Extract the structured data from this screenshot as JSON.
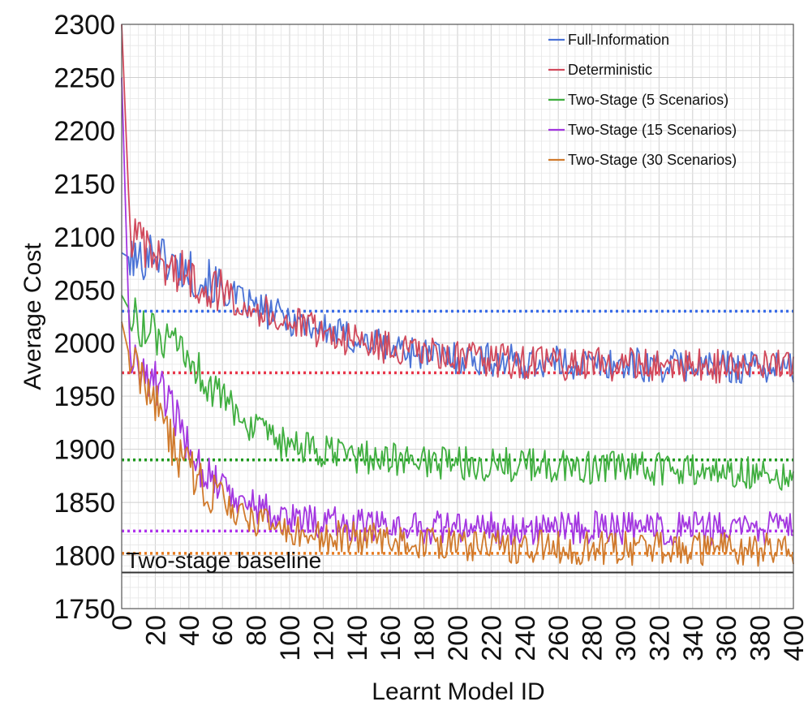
{
  "chart_data": {
    "type": "line",
    "title": "",
    "xlabel": "Learnt Model ID",
    "ylabel": "Average Cost",
    "xlim": [
      0,
      400
    ],
    "ylim": [
      1750,
      2300
    ],
    "x_ticks": [
      "0",
      "20",
      "40",
      "60",
      "80",
      "100",
      "120",
      "140",
      "160",
      "180",
      "200",
      "220",
      "240",
      "260",
      "280",
      "300",
      "320",
      "340",
      "360",
      "380",
      "400"
    ],
    "y_ticks": [
      "1750",
      "1800",
      "1850",
      "1900",
      "1950",
      "2000",
      "2050",
      "2100",
      "2150",
      "2200",
      "2250",
      "2300"
    ],
    "grid": true,
    "legend_position": "top-right",
    "x": [
      0,
      5,
      10,
      15,
      20,
      25,
      30,
      35,
      40,
      45,
      50,
      55,
      60,
      65,
      70,
      75,
      80,
      85,
      90,
      95,
      100,
      110,
      120,
      130,
      140,
      150,
      160,
      170,
      180,
      190,
      200,
      220,
      240,
      260,
      280,
      300,
      320,
      340,
      360,
      380,
      400
    ],
    "series": [
      {
        "name": "Full-Information",
        "color": "#4a72d6",
        "values": [
          2085,
          2080,
          2075,
          2085,
          2088,
          2080,
          2075,
          2070,
          2068,
          2062,
          2058,
          2055,
          2050,
          2045,
          2040,
          2037,
          2032,
          2030,
          2028,
          2025,
          2023,
          2018,
          2013,
          2008,
          2003,
          2000,
          1997,
          1993,
          1990,
          1988,
          1986,
          1984,
          1982,
          1981,
          1980,
          1980,
          1979,
          1979,
          1978,
          1978,
          1977
        ]
      },
      {
        "name": "Deterministic",
        "color": "#d14a5c",
        "values": [
          2300,
          2105,
          2095,
          2085,
          2080,
          2075,
          2070,
          2066,
          2062,
          2058,
          2055,
          2052,
          2048,
          2044,
          2040,
          2036,
          2032,
          2029,
          2026,
          2023,
          2020,
          2015,
          2010,
          2006,
          2002,
          1998,
          1995,
          1992,
          1990,
          1988,
          1986,
          1984,
          1982,
          1981,
          1980,
          1980,
          1979,
          1979,
          1978,
          1978,
          1977
        ]
      },
      {
        "name": "Two-Stage (5 Scenarios)",
        "color": "#3fae3f",
        "values": [
          2045,
          2030,
          2020,
          2010,
          2005,
          2000,
          1995,
          1990,
          1985,
          1975,
          1965,
          1955,
          1948,
          1940,
          1932,
          1925,
          1918,
          1912,
          1908,
          1905,
          1903,
          1900,
          1897,
          1895,
          1893,
          1892,
          1891,
          1890,
          1889,
          1888,
          1887,
          1886,
          1885,
          1884,
          1883,
          1882,
          1881,
          1880,
          1879,
          1878,
          1877
        ]
      },
      {
        "name": "Two-Stage (15 Scenarios)",
        "color": "#a336e0",
        "values": [
          2250,
          1985,
          1975,
          1970,
          1965,
          1950,
          1935,
          1920,
          1905,
          1890,
          1880,
          1872,
          1865,
          1860,
          1855,
          1850,
          1846,
          1843,
          1840,
          1838,
          1836,
          1834,
          1832,
          1830,
          1829,
          1828,
          1828,
          1827,
          1827,
          1827,
          1826,
          1826,
          1826,
          1826,
          1826,
          1825,
          1825,
          1825,
          1825,
          1825,
          1825
        ]
      },
      {
        "name": "Two-Stage (30 Scenarios)",
        "color": "#d07a2c",
        "values": [
          2020,
          1985,
          1970,
          1960,
          1945,
          1925,
          1905,
          1890,
          1880,
          1872,
          1865,
          1858,
          1850,
          1845,
          1840,
          1836,
          1832,
          1829,
          1826,
          1824,
          1822,
          1820,
          1818,
          1817,
          1816,
          1815,
          1814,
          1813,
          1812,
          1811,
          1810,
          1809,
          1808,
          1808,
          1807,
          1807,
          1806,
          1806,
          1806,
          1806,
          1806
        ]
      }
    ],
    "reference_lines": [
      {
        "series": "Full-Information",
        "y": 2030,
        "color": "#3b6de8",
        "style": "dotted"
      },
      {
        "series": "Deterministic",
        "y": 1972,
        "color": "#e8364a",
        "style": "dotted"
      },
      {
        "series": "Two-Stage (5 Scenarios)",
        "y": 1890,
        "color": "#1f9a1f",
        "style": "dotted"
      },
      {
        "series": "Two-Stage (15 Scenarios)",
        "y": 1823,
        "color": "#b034ee",
        "style": "dotted"
      },
      {
        "series": "Two-Stage (30 Scenarios)",
        "y": 1802,
        "color": "#e87d22",
        "style": "dotted"
      },
      {
        "label": "Two-stage baseline",
        "y": 1784,
        "color": "#333333",
        "style": "solid"
      }
    ]
  }
}
